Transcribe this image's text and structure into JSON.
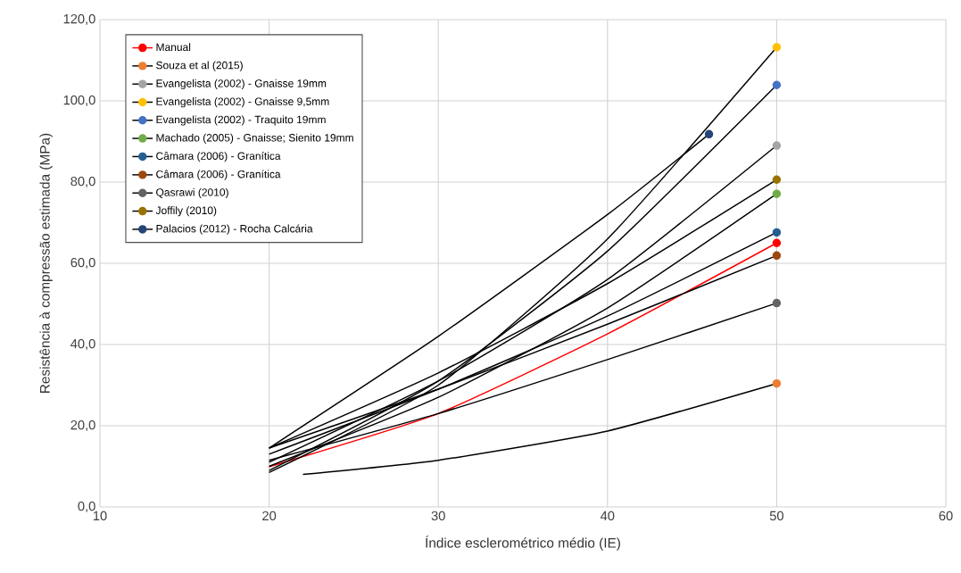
{
  "chart_data": {
    "type": "line",
    "xlabel": "Índice esclerométrico médio (IE)",
    "ylabel": "Resistência à compressão estimada (MPa)",
    "xlim": [
      10,
      60
    ],
    "xticks": [
      10,
      20,
      30,
      40,
      50,
      60
    ],
    "ylim": [
      0,
      120
    ],
    "yticks": [
      {
        "value": 0,
        "label": "0,0"
      },
      {
        "value": 20,
        "label": "20,0"
      },
      {
        "value": 40,
        "label": "40,0"
      },
      {
        "value": 60,
        "label": "60,0"
      },
      {
        "value": 80,
        "label": "80,0"
      },
      {
        "value": 100,
        "label": "100,0"
      },
      {
        "value": 120,
        "label": "120,0"
      }
    ],
    "grid": true,
    "legend": "top left",
    "series": [
      {
        "name": "Manual",
        "color": "#ff0000",
        "x": [
          20,
          30,
          40,
          50
        ],
        "values": [
          9.9,
          23,
          42.6,
          65
        ],
        "colors": [
          null,
          null,
          null,
          "#ff0000"
        ]
      },
      {
        "name": "Souza et al (2015)",
        "color": "#000000",
        "x": [
          22,
          30,
          40,
          50
        ],
        "values": [
          8,
          11.5,
          18.7,
          30.4
        ],
        "colors": [
          null,
          null,
          null,
          "#ed7d31"
        ]
      },
      {
        "name": "Evangelista (2002) - Gnaisse 19mm",
        "color": "#000000",
        "x": [
          20,
          30,
          40,
          50
        ],
        "values": [
          11,
          31,
          56,
          89
        ],
        "colors": [
          null,
          null,
          null,
          "#a5a5a5"
        ]
      },
      {
        "name": "Evangelista (2002) - Gnaisse 9,5mm",
        "color": "#000000",
        "x": [
          20,
          30,
          40,
          50
        ],
        "values": [
          8.5,
          30,
          66,
          113.2
        ],
        "colors": [
          null,
          null,
          null,
          "#ffc000"
        ]
      },
      {
        "name": "Evangelista (2002) - Traquito 19mm",
        "color": "#000000",
        "x": [
          20,
          30,
          40,
          50
        ],
        "values": [
          9,
          31,
          63,
          103.9
        ],
        "colors": [
          null,
          null,
          null,
          "#4472c4"
        ]
      },
      {
        "name": "Machado (2005) - Gnaisse; Sienito 19mm",
        "color": "#000000",
        "x": [
          20,
          30,
          40,
          50
        ],
        "values": [
          10,
          27,
          49,
          77.1
        ],
        "colors": [
          null,
          null,
          null,
          "#70ad47"
        ]
      },
      {
        "name": "Câmara (2006) - Granítica",
        "color": "#000000",
        "x": [
          20,
          30,
          40,
          50
        ],
        "values": [
          13,
          29,
          47,
          67.6
        ],
        "colors": [
          null,
          null,
          null,
          "#255e91"
        ]
      },
      {
        "name": "Câmara (2006) - Granítica",
        "color": "#000000",
        "x": [
          20,
          30,
          40,
          50
        ],
        "values": [
          14.5,
          29,
          45,
          61.9
        ],
        "colors": [
          null,
          null,
          null,
          "#9e480e"
        ]
      },
      {
        "name": "Qasrawi (2010)",
        "color": "#000000",
        "x": [
          20,
          30,
          40,
          50
        ],
        "values": [
          11.5,
          23,
          36.3,
          50.2
        ],
        "colors": [
          null,
          null,
          null,
          "#636363"
        ]
      },
      {
        "name": "Joffily (2010)",
        "color": "#000000",
        "x": [
          20,
          30,
          40,
          50
        ],
        "values": [
          14.5,
          33,
          55,
          80.6
        ],
        "colors": [
          null,
          null,
          null,
          "#997300"
        ]
      },
      {
        "name": "Palacios (2012) - Rocha Calcária",
        "color": "#000000",
        "x": [
          20,
          30,
          40,
          46
        ],
        "values": [
          14.5,
          42,
          72,
          91.8
        ],
        "colors": [
          null,
          null,
          null,
          "#264478"
        ]
      }
    ]
  }
}
